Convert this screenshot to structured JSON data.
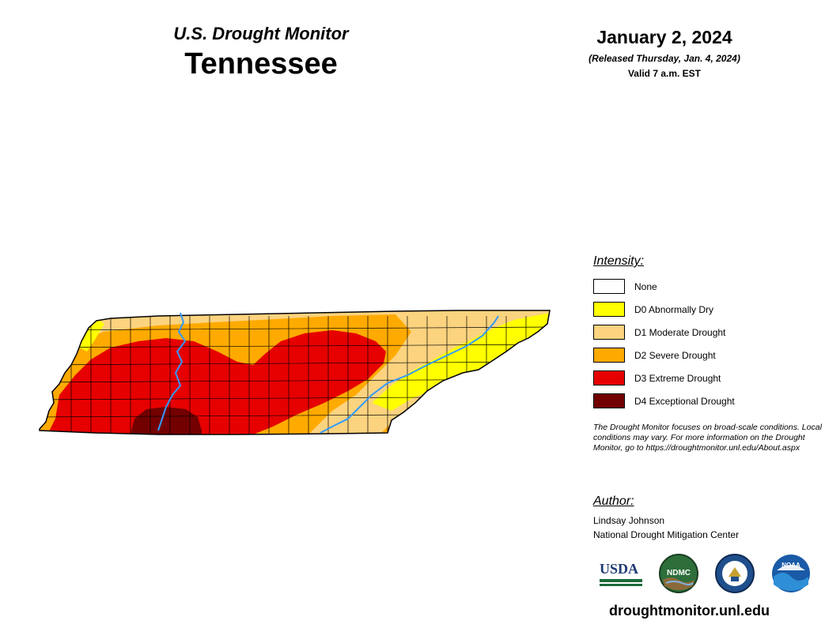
{
  "header": {
    "subtitle": "U.S. Drought Monitor",
    "state": "Tennessee",
    "date": "January 2, 2024",
    "released": "(Released Thursday, Jan. 4, 2024)",
    "valid": "Valid 7 a.m. EST"
  },
  "legend": {
    "title": "Intensity:",
    "items": [
      {
        "label": "None",
        "color": "#ffffff"
      },
      {
        "label": "D0 Abnormally Dry",
        "color": "#ffff00"
      },
      {
        "label": "D1 Moderate Drought",
        "color": "#fcd37f"
      },
      {
        "label": "D2 Severe Drought",
        "color": "#ffaa00"
      },
      {
        "label": "D3 Extreme Drought",
        "color": "#e60000"
      },
      {
        "label": "D4 Exceptional Drought",
        "color": "#730000"
      }
    ]
  },
  "note": "The Drought Monitor focuses on broad-scale conditions. Local conditions may vary. For more information on the Drought Monitor, go to https://droughtmonitor.unl.edu/About.aspx",
  "author": {
    "title": "Author:",
    "name": "Lindsay Johnson",
    "organization": "National Drought Mitigation Center"
  },
  "logos": {
    "usda": "USDA",
    "ndmc": "NDMC",
    "noaa": "NOAA"
  },
  "url": "droughtmonitor.unl.edu",
  "map": {
    "river_color": "#3399ff",
    "county_line_color": "#000000"
  }
}
